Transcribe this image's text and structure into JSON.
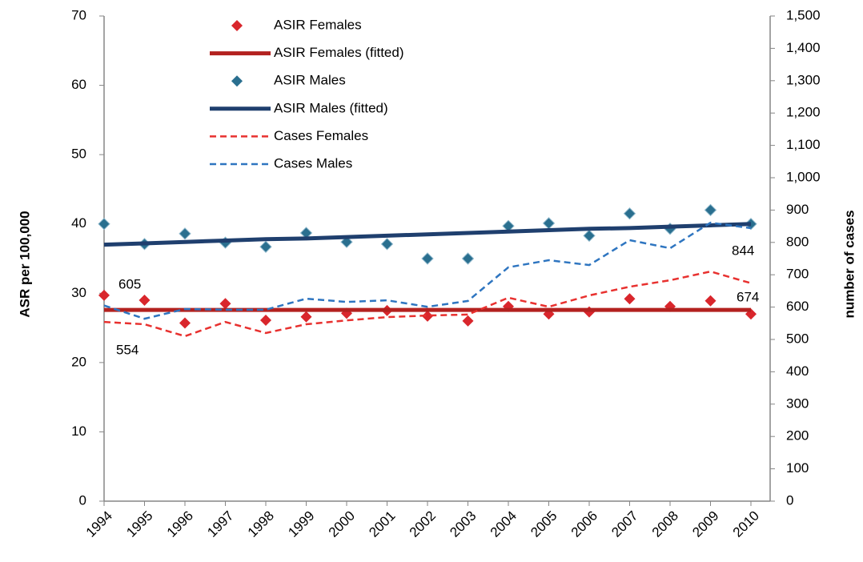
{
  "chart_data": {
    "type": "line",
    "y_label": "ASR per 100,000",
    "y2_label": "number of cases",
    "categories": [
      "1994",
      "1995",
      "1996",
      "1997",
      "1998",
      "1999",
      "2000",
      "2001",
      "2002",
      "2003",
      "2004",
      "2005",
      "2006",
      "2007",
      "2008",
      "2009",
      "2010"
    ],
    "ylim": [
      0,
      70
    ],
    "yticks": [
      0,
      10,
      20,
      30,
      40,
      50,
      60,
      70
    ],
    "y2lim": [
      0,
      1500
    ],
    "y2ticks": [
      0,
      100,
      200,
      300,
      400,
      500,
      600,
      700,
      800,
      900,
      {
        "value": 1000,
        "label": "1,000"
      },
      {
        "value": 1100,
        "label": "1,100"
      },
      {
        "value": 1200,
        "label": "1,200"
      },
      {
        "value": 1300,
        "label": "1,300"
      },
      {
        "value": 1400,
        "label": "1,400"
      },
      {
        "value": 1500,
        "label": "1,500"
      }
    ],
    "legend": "top-left",
    "series": [
      {
        "name": "ASIR Females",
        "color": "#d9262c",
        "style": "markers",
        "values": [
          29.7,
          29.0,
          25.7,
          28.5,
          26.1,
          26.6,
          27.1,
          27.5,
          26.7,
          26.0,
          28.1,
          27.0,
          27.3,
          29.2,
          28.1,
          28.9,
          27.0
        ]
      },
      {
        "name": "ASIR Females (fitted)",
        "color": "#b3211f",
        "style": "solid",
        "values": [
          27.6,
          27.6,
          27.6,
          27.6,
          27.6,
          27.6,
          27.6,
          27.6,
          27.6,
          27.6,
          27.6,
          27.6,
          27.6,
          27.6,
          27.6,
          27.6,
          27.6
        ]
      },
      {
        "name": "ASIR Males",
        "color": "#2a6f8f",
        "style": "markers",
        "values": [
          40.0,
          37.1,
          38.6,
          37.3,
          36.7,
          38.7,
          37.4,
          37.1,
          35.0,
          35.0,
          39.7,
          40.1,
          38.3,
          41.5,
          39.3,
          42.0,
          40.0
        ]
      },
      {
        "name": "ASIR Males (fitted)",
        "color": "#1f3f6e",
        "style": "solid",
        "values": [
          37.0,
          37.2,
          37.4,
          37.6,
          37.8,
          37.9,
          38.1,
          38.3,
          38.5,
          38.7,
          38.9,
          39.1,
          39.3,
          39.4,
          39.6,
          39.8,
          40.0
        ]
      },
      {
        "name": "Cases Females",
        "color": "#e8312f",
        "style": "dashed",
        "axis": "y2",
        "values": [
          554,
          547,
          510,
          554,
          520,
          547,
          559,
          569,
          574,
          577,
          629,
          601,
          636,
          663,
          683,
          710,
          674
        ]
      },
      {
        "name": "Cases Males",
        "color": "#2e75c0",
        "style": "dashed",
        "axis": "y2",
        "values": [
          605,
          564,
          594,
          592,
          592,
          626,
          616,
          621,
          601,
          619,
          723,
          745,
          730,
          807,
          782,
          861,
          844
        ]
      }
    ]
  }
}
